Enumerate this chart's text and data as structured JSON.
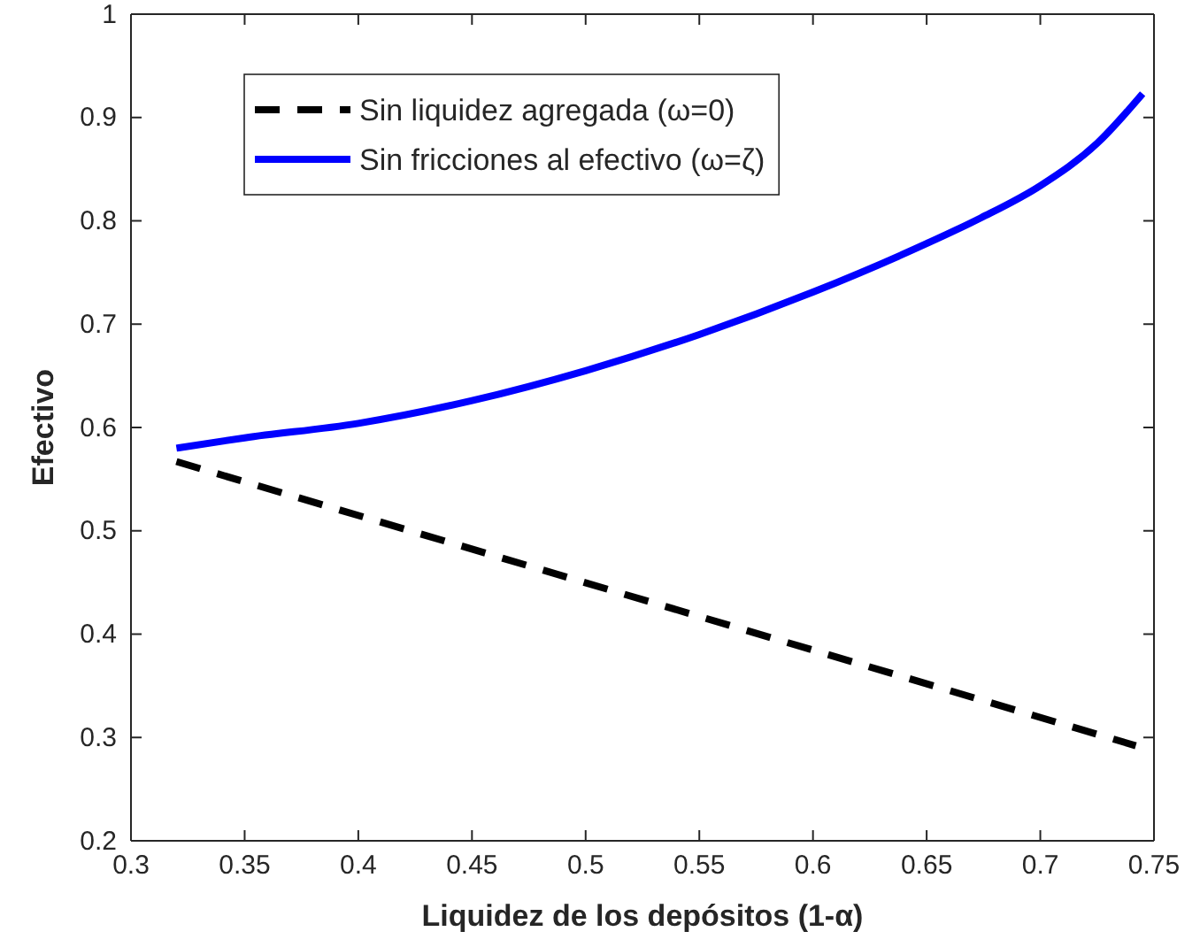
{
  "chart_data": {
    "type": "line",
    "xlabel": "Liquidez de los depósitos (1-α)",
    "ylabel": "Efectivo",
    "xlim": [
      0.3,
      0.75
    ],
    "xticks": [
      0.3,
      0.35,
      0.4,
      0.45,
      0.5,
      0.55,
      0.6,
      0.65,
      0.7,
      0.75
    ],
    "ylim": [
      0.2,
      1
    ],
    "yticks": [
      0.2,
      0.3,
      0.4,
      0.5,
      0.6,
      0.7,
      0.8,
      0.9,
      1
    ],
    "legend": "top left",
    "grid": false,
    "series": [
      {
        "name": "Sin liquidez agregada (ω=0)",
        "color": "#000000",
        "line_style": "dashed",
        "x": [
          0.32,
          0.742
        ],
        "values": [
          0.567,
          0.292
        ]
      },
      {
        "name": "Sin fricciones al efectivo (ω=ζ)",
        "color": "#0000ff",
        "line_style": "solid",
        "x": [
          0.32,
          0.35,
          0.4,
          0.45,
          0.5,
          0.55,
          0.6,
          0.65,
          0.674,
          0.7,
          0.725,
          0.745
        ],
        "values": [
          0.58,
          0.59,
          0.604,
          0.626,
          0.655,
          0.69,
          0.731,
          0.778,
          0.803,
          0.834,
          0.875,
          0.923
        ]
      }
    ]
  }
}
